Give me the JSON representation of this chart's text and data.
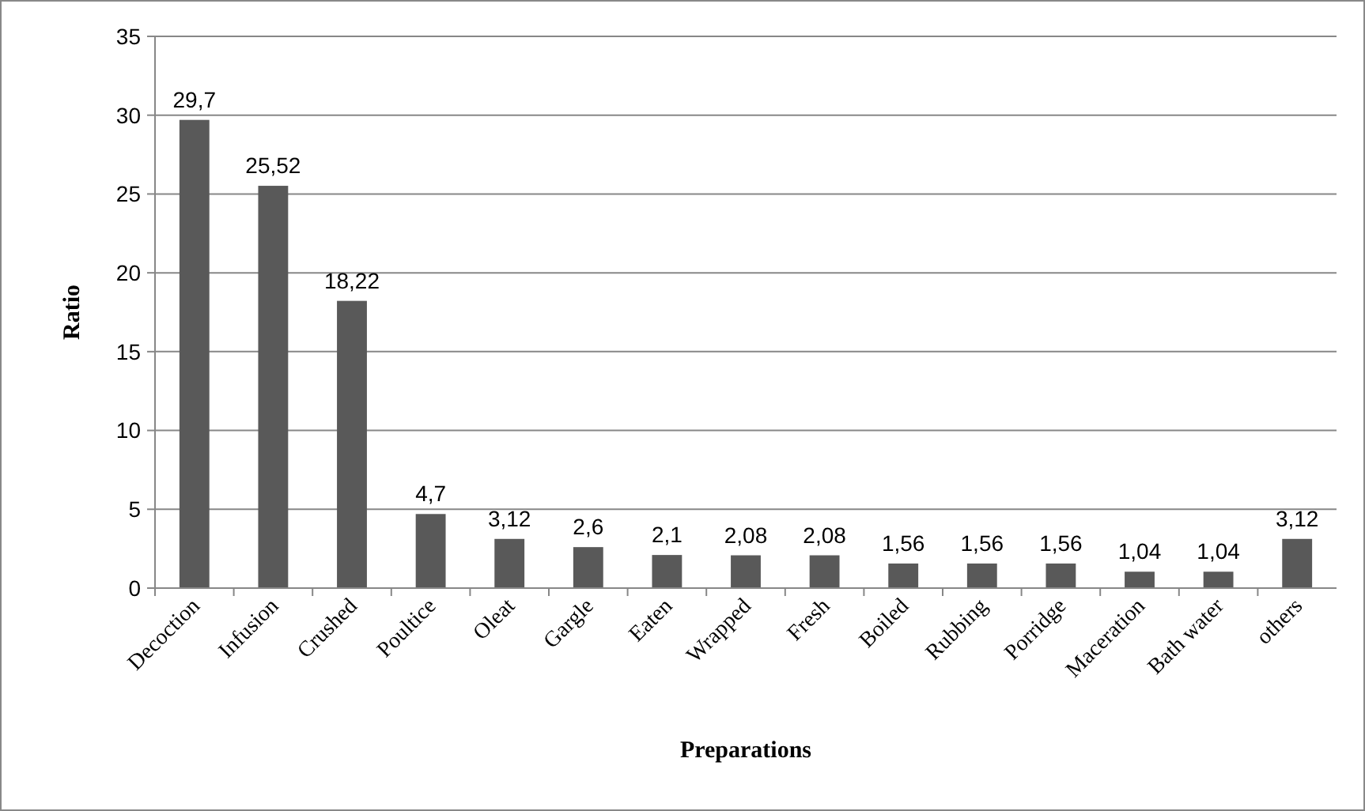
{
  "chart_data": {
    "type": "bar",
    "xlabel": "Preparations",
    "ylabel": "Ratio",
    "categories": [
      "Decoction",
      "Infusion",
      "Crushed",
      "Poultice",
      "Oleat",
      "Gargle",
      "Eaten",
      "Wrapped",
      "Fresh",
      "Boiled",
      "Rubbing",
      "Porridge",
      "Maceration",
      "Bath water",
      "others"
    ],
    "values": [
      29.7,
      25.52,
      18.22,
      4.7,
      3.12,
      2.6,
      2.1,
      2.08,
      2.08,
      1.56,
      1.56,
      1.56,
      1.04,
      1.04,
      3.12
    ],
    "value_labels": [
      "29,7",
      "25,52",
      "18,22",
      "4,7",
      "3,12",
      "2,6",
      "2,1",
      "2,08",
      "2,08",
      "1,56",
      "1,56",
      "1,56",
      "1,04",
      "1,04",
      "3,12"
    ],
    "color": "#595959",
    "ylim": [
      0,
      35
    ],
    "yticks": [
      0,
      5,
      10,
      15,
      20,
      25,
      30,
      35
    ],
    "grid": "y"
  }
}
